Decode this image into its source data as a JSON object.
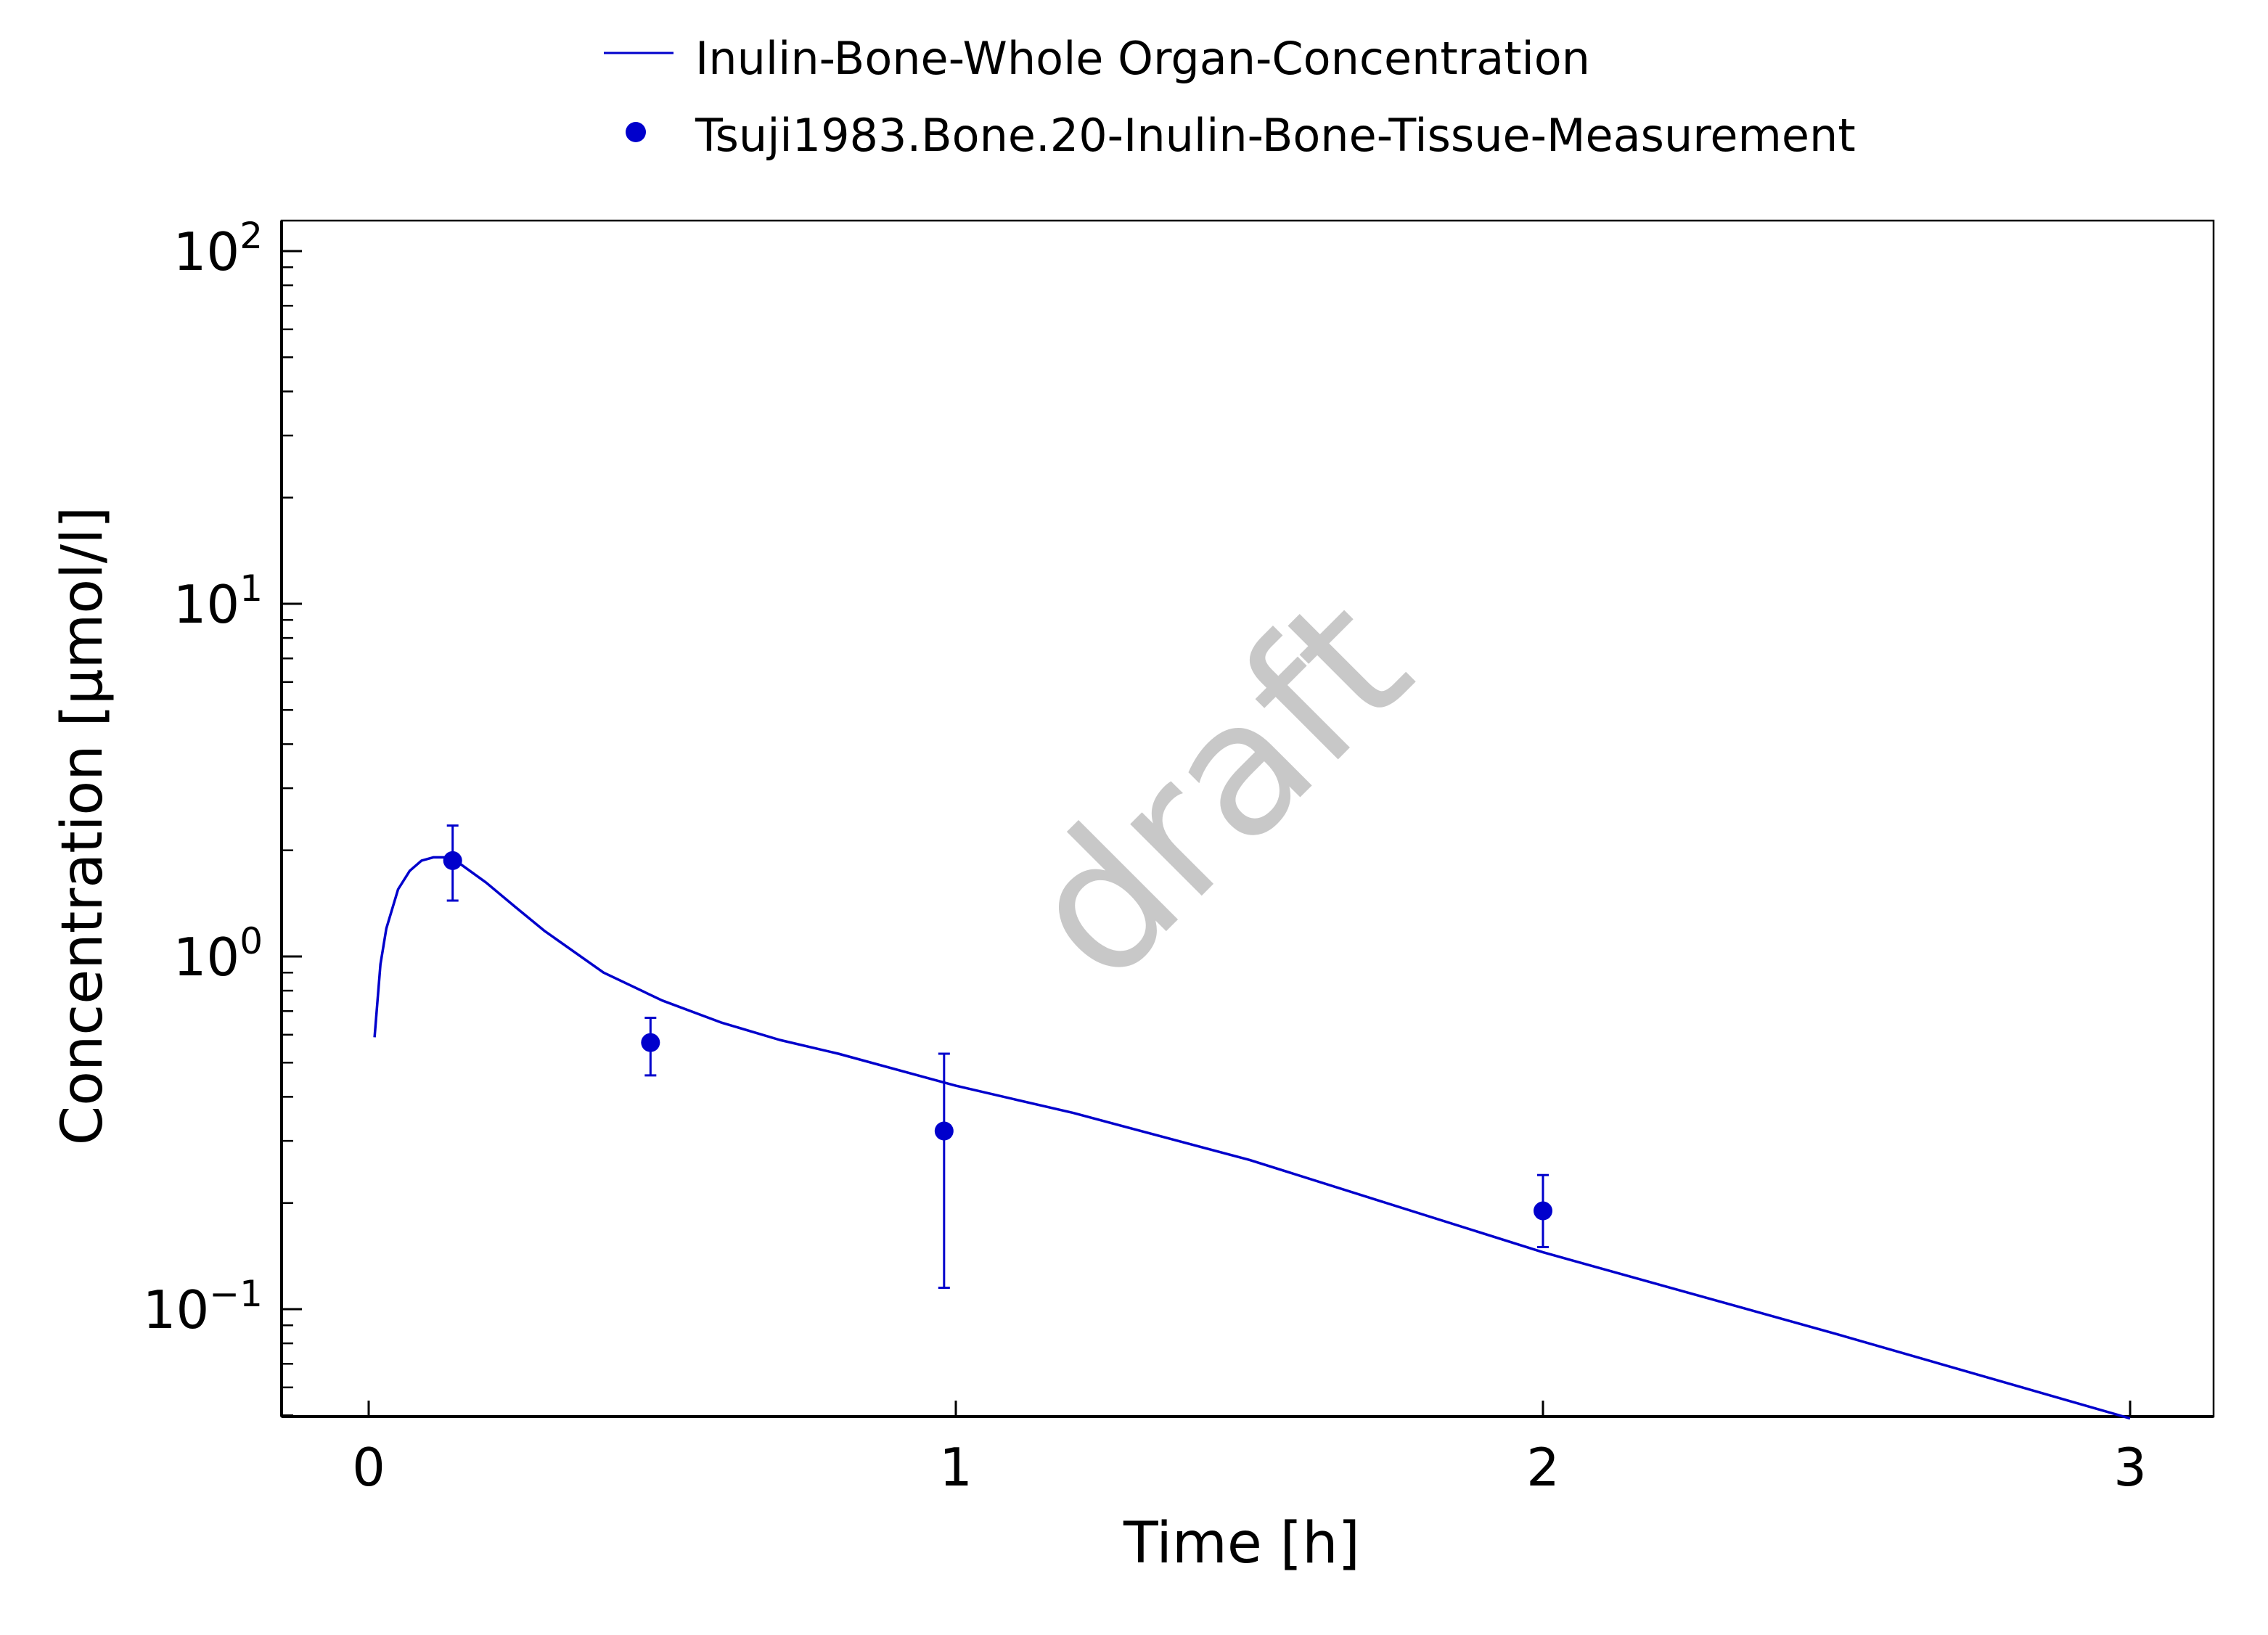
{
  "chart_data": {
    "type": "line",
    "watermark": "draft",
    "xlabel": "Time [h]",
    "ylabel": "Concentration [µmol/l]",
    "x_scale": "linear",
    "y_scale": "log",
    "xlim": [
      -0.15,
      3.15
    ],
    "ylim": [
      0.05,
      120
    ],
    "x_ticks": [
      0,
      1,
      2,
      3
    ],
    "x_tick_labels": [
      "0",
      "1",
      "2",
      "3"
    ],
    "y_ticks": [
      {
        "value": 0.1,
        "base": "10",
        "exp": "−1"
      },
      {
        "value": 1,
        "base": "10",
        "exp": "0"
      },
      {
        "value": 10,
        "base": "10",
        "exp": "1"
      },
      {
        "value": 100,
        "base": "10",
        "exp": "2"
      }
    ],
    "legend_position": "top-center",
    "grid": false,
    "color": "#0000cc",
    "series": [
      {
        "name": "Inulin-Bone-Whole Organ-Concentration",
        "kind": "line",
        "x": [
          0.01,
          0.02,
          0.03,
          0.05,
          0.07,
          0.09,
          0.11,
          0.13,
          0.15,
          0.2,
          0.25,
          0.3,
          0.4,
          0.5,
          0.6,
          0.7,
          0.8,
          1.0,
          1.2,
          1.5,
          2.0,
          2.5,
          3.0
        ],
        "y": [
          0.59,
          0.95,
          1.2,
          1.55,
          1.75,
          1.87,
          1.91,
          1.91,
          1.86,
          1.62,
          1.38,
          1.18,
          0.9,
          0.75,
          0.65,
          0.58,
          0.53,
          0.43,
          0.36,
          0.265,
          0.145,
          0.085,
          0.049
        ]
      },
      {
        "name": "Tsuji1983.Bone.20-Inulin-Bone-Tissue-Measurement",
        "kind": "scatter",
        "x": [
          0.143,
          0.48,
          0.98,
          2.0
        ],
        "y": [
          1.87,
          0.57,
          0.32,
          0.19
        ],
        "error_low": [
          1.44,
          0.46,
          0.115,
          0.15
        ],
        "error_high": [
          2.35,
          0.67,
          0.53,
          0.24
        ]
      }
    ]
  }
}
